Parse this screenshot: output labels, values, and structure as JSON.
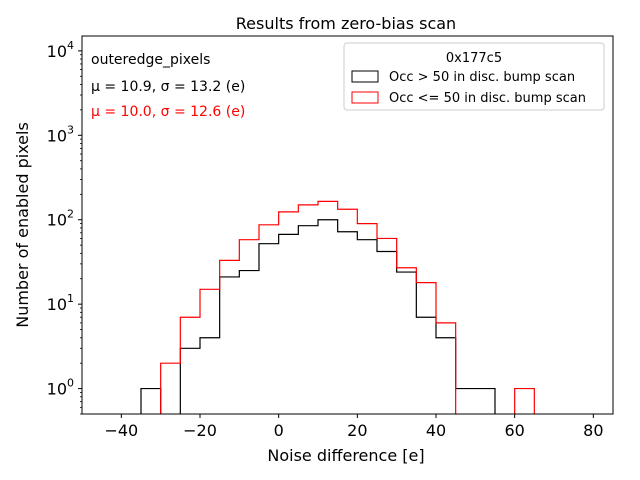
{
  "chart_data": {
    "type": "histogram",
    "title": "Results from zero-bias scan",
    "xlabel": "Noise difference [e]",
    "ylabel": "Number of enabled pixels",
    "xlim": [
      -50,
      85
    ],
    "ylim_log": [
      0.5,
      15000
    ],
    "yscale": "log",
    "grid": false,
    "x_ticks": [
      -40,
      -20,
      0,
      20,
      40,
      60,
      80
    ],
    "x_tick_labels": [
      "−40",
      "−20",
      "0",
      "20",
      "40",
      "60",
      "80"
    ],
    "y_ticks": [
      1,
      10,
      100,
      1000,
      10000
    ],
    "y_tick_labels": [
      {
        "base": "10",
        "exp": "0"
      },
      {
        "base": "10",
        "exp": "1"
      },
      {
        "base": "10",
        "exp": "2"
      },
      {
        "base": "10",
        "exp": "3"
      },
      {
        "base": "10",
        "exp": "4"
      }
    ],
    "bin_edges": [
      -35,
      -30,
      -25,
      -20,
      -15,
      -10,
      -5,
      0,
      5,
      10,
      15,
      20,
      25,
      30,
      35,
      40,
      45,
      50,
      55,
      60,
      65
    ],
    "series": [
      {
        "name": "Occ > 50 in disc. bump scan",
        "color": "#000000",
        "values": [
          1,
          0,
          3,
          4,
          21,
          25,
          52,
          67,
          85,
          100,
          72,
          58,
          42,
          24,
          7,
          4,
          1,
          1,
          0,
          0
        ]
      },
      {
        "name": "Occ <= 50 in disc. bump scan",
        "color": "#ff0000",
        "values": [
          0,
          2,
          7,
          15,
          33,
          58,
          87,
          124,
          150,
          165,
          133,
          90,
          60,
          27,
          18,
          6,
          0,
          0,
          0,
          1
        ]
      }
    ],
    "legend": {
      "title": "0x177c5",
      "placement": "top-right"
    },
    "annotations": {
      "label": "outeredge_pixels",
      "stats_black": {
        "prefix": "μ = 10.9, ",
        "sigma_part": "σ = 13.2 (e)",
        "color": "#000000"
      },
      "stats_red": {
        "prefix": "μ = 10.0, ",
        "sigma_part": "σ = 12.6 (e)",
        "color": "#ff0000"
      }
    }
  }
}
